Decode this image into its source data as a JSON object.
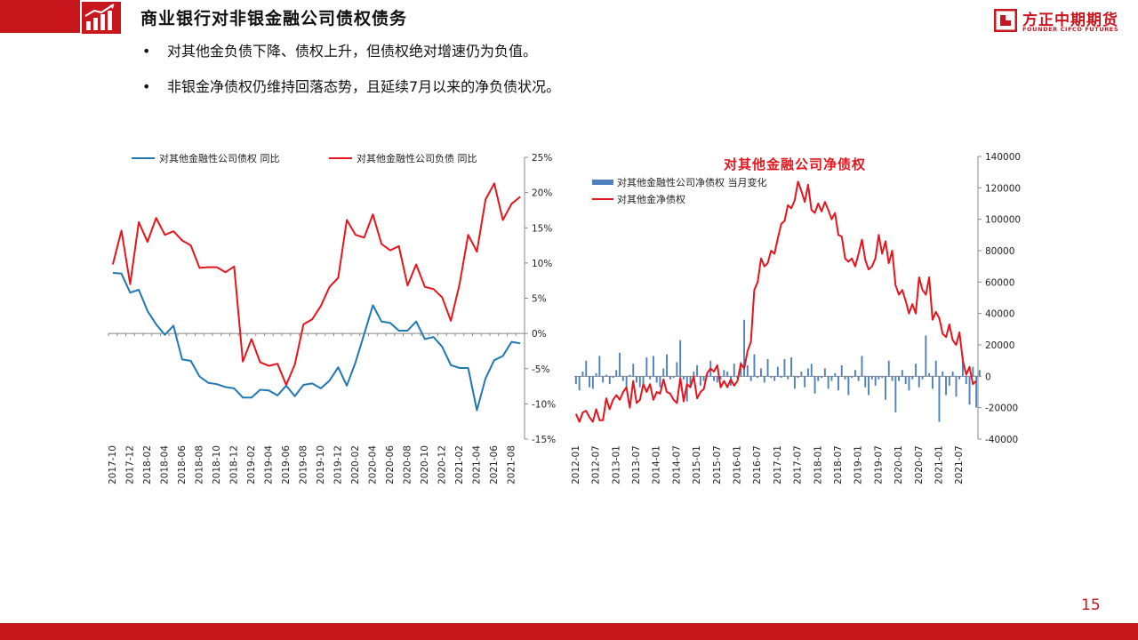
{
  "header": {
    "title": "商业银行对非银金融公司债权债务",
    "logo_cn": "方正中期期货",
    "logo_en": "FOUNDER CIFCO FUTURES"
  },
  "bullets": [
    {
      "symbol": "•",
      "text": "对其他金负债下降、债权上升，但债权绝对增速仍为负值。"
    },
    {
      "symbol": "•",
      "text": "非银金净债权仍维持回落态势，且延续7月以来的净负债状况。"
    }
  ],
  "footer": {
    "page_number": "15"
  },
  "colors": {
    "brand_red": "#c8161d",
    "series_blue": "#1f77b4",
    "series_red": "#e8141c",
    "bar_blue": "#4f81bd"
  },
  "chart_data": [
    {
      "type": "line",
      "title": "",
      "x_tick_labels": [
        "2017-10",
        "2017-12",
        "2018-02",
        "2018-04",
        "2018-06",
        "2018-08",
        "2018-10",
        "2018-12",
        "2019-02",
        "2019-04",
        "2019-06",
        "2019-08",
        "2019-10",
        "2019-12",
        "2020-02",
        "2020-04",
        "2020-06",
        "2020-08",
        "2020-10",
        "2020-12",
        "2021-02",
        "2021-04",
        "2021-06",
        "2021-08"
      ],
      "y_axis": {
        "side": "right",
        "min": -15,
        "max": 25,
        "step": 5,
        "tick_labels": [
          "25%",
          "20%",
          "15%",
          "10%",
          "5%",
          "0%",
          "-5%",
          "-10%",
          "-15%"
        ]
      },
      "series": [
        {
          "name": "对其他金融性公司债权  同比",
          "color": "#1f77b4",
          "values": [
            8.6,
            8.5,
            5.8,
            6.2,
            3.2,
            1.3,
            -0.2,
            1.1,
            -3.7,
            -3.9,
            -6.1,
            -7.0,
            -7.2,
            -7.6,
            -7.8,
            -9.1,
            -9.1,
            -8.0,
            -8.1,
            -8.8,
            -7.4,
            -8.9,
            -7.3,
            -7.1,
            -7.8,
            -6.7,
            -4.8,
            -7.4,
            -4.1,
            -0.1,
            4.0,
            1.7,
            1.5,
            0.4,
            0.4,
            1.7,
            -0.8,
            -0.5,
            -1.9,
            -4.5,
            -4.9,
            -4.9,
            -10.9,
            -6.4,
            -3.8,
            -3.2,
            -1.2,
            -1.4
          ]
        },
        {
          "name": "对其他金融性公司负债  同比",
          "color": "#e8141c",
          "values": [
            9.8,
            14.6,
            7.0,
            15.8,
            13.0,
            16.4,
            14.0,
            14.5,
            13.2,
            12.5,
            9.3,
            9.4,
            9.4,
            8.7,
            9.5,
            -4.0,
            -0.8,
            -4.1,
            -4.6,
            -4.3,
            -7.3,
            -4.4,
            1.3,
            2.0,
            3.9,
            6.6,
            7.9,
            16.1,
            14.0,
            13.6,
            16.9,
            12.7,
            11.8,
            12.4,
            6.8,
            9.8,
            6.6,
            6.3,
            5.1,
            1.8,
            7.0,
            14.0,
            11.6,
            19.0,
            21.3,
            16.1,
            18.4,
            19.4
          ]
        }
      ]
    },
    {
      "type": "bar+line",
      "title": "对其他金融公司净债权",
      "x_tick_labels": [
        "2012-01",
        "2012-07",
        "2013-01",
        "2013-07",
        "2014-01",
        "2014-07",
        "2015-01",
        "2015-07",
        "2016-01",
        "2016-07",
        "2017-01",
        "2017-07",
        "2018-01",
        "2018-07",
        "2019-01",
        "2019-07",
        "2020-01",
        "2020-07",
        "2021-01",
        "2021-07"
      ],
      "y_axis": {
        "side": "right",
        "min": -40000,
        "max": 140000,
        "step": 20000,
        "tick_labels": [
          "140000",
          "120000",
          "100000",
          "80000",
          "60000",
          "40000",
          "20000",
          "0",
          "-20000",
          "-40000"
        ]
      },
      "series": [
        {
          "name": "对其他金融性公司净债权 当月变化",
          "type": "bar",
          "color": "#4f81bd",
          "values": [
            -5000,
            -9000,
            3000,
            10000,
            -7000,
            -8000,
            2000,
            13000,
            -4000,
            1000,
            -5000,
            -1000,
            4000,
            15000,
            -3000,
            -7000,
            1000,
            8000,
            -4000,
            -7000,
            -5000,
            12000,
            -2000,
            13000,
            -4000,
            -7000,
            5000,
            14000,
            -2000,
            -1000,
            9000,
            23000,
            -2000,
            -16000,
            -6000,
            3000,
            7000,
            -6000,
            -3000,
            2000,
            10000,
            -3000,
            -4000,
            -2000,
            4000,
            3000,
            -6000,
            8000,
            -1000,
            9000,
            36000,
            7000,
            -3000,
            14000,
            -1000,
            5000,
            -4000,
            11000,
            -1000,
            -3000,
            6000,
            -1000,
            11000,
            -2000,
            12000,
            -8000,
            -1000,
            3000,
            -7000,
            5000,
            8000,
            -11000,
            -3000,
            -1000,
            5000,
            -8000,
            -3000,
            2000,
            -9000,
            7000,
            -2000,
            -12000,
            -1000,
            4000,
            -3000,
            13000,
            -7000,
            -12000,
            -2000,
            -6000,
            -2000,
            -1000,
            -15000,
            10000,
            -3000,
            -23000,
            -3000,
            4000,
            -5000,
            -9000,
            -2000,
            8000,
            -7000,
            -2000,
            26000,
            2000,
            -8000,
            10000,
            -29000,
            3000,
            -12000,
            -6000,
            3000,
            -13000,
            -2000,
            12000,
            -5000,
            -18000,
            6000,
            -20000,
            4000
          ]
        },
        {
          "name": "对其他金净债权",
          "type": "line",
          "color": "#e8141c",
          "values": [
            -24000,
            -29000,
            -23000,
            -22000,
            -26000,
            -29000,
            -21000,
            -28000,
            -28000,
            -14000,
            -21000,
            -15000,
            -12000,
            -15000,
            -10000,
            -7000,
            -20000,
            -3000,
            -17000,
            -15000,
            -5000,
            -10000,
            -5000,
            -15000,
            -10000,
            -11000,
            -2000,
            -10000,
            -11000,
            -15000,
            -17000,
            -1000,
            -16000,
            -5000,
            -7000,
            0,
            -14000,
            -10000,
            -8000,
            2000,
            5000,
            3000,
            7000,
            -7000,
            -3000,
            -7000,
            -2000,
            -6000,
            -3000,
            8000,
            5000,
            16000,
            22000,
            55000,
            60000,
            75000,
            70000,
            72000,
            80000,
            78000,
            88000,
            97000,
            99000,
            109000,
            107000,
            112000,
            124000,
            118000,
            111000,
            122000,
            106000,
            104000,
            110000,
            105000,
            111000,
            106000,
            100000,
            104000,
            90000,
            89000,
            75000,
            73000,
            75000,
            70000,
            78000,
            87000,
            74000,
            68000,
            70000,
            75000,
            90000,
            78000,
            86000,
            72000,
            80000,
            58000,
            52000,
            55000,
            48000,
            40000,
            46000,
            40000,
            63000,
            55000,
            52000,
            63000,
            36000,
            41000,
            37000,
            27000,
            25000,
            33000,
            23000,
            20000,
            28000,
            10000,
            1000,
            6000,
            -5000,
            -3000
          ]
        }
      ]
    }
  ]
}
